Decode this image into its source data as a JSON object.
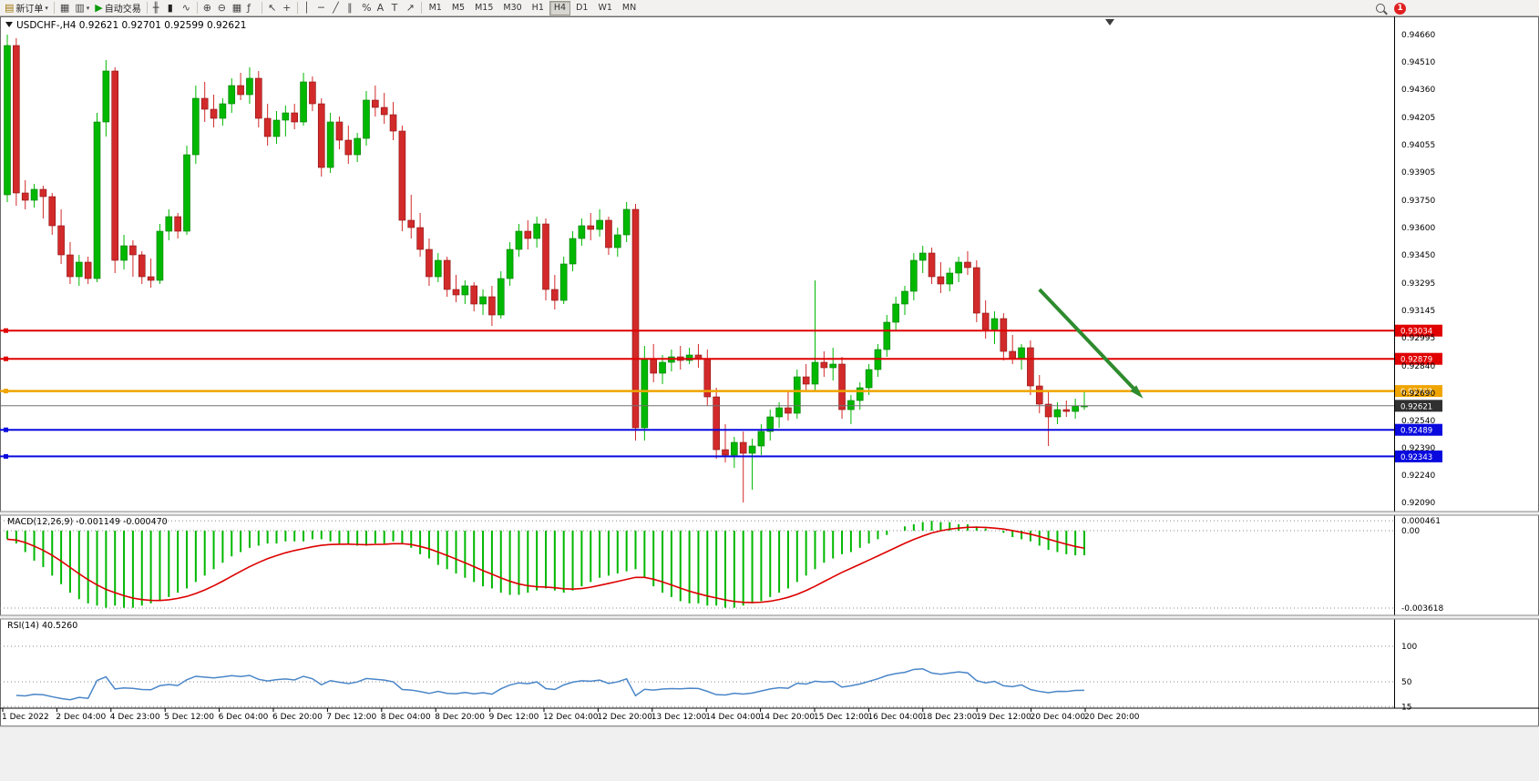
{
  "window": {
    "title": "USDCHF-,H4  0.92621 0.92701 0.92599 0.92621",
    "symbol": "USDCHF-",
    "timeframe": "H4",
    "quote": {
      "open": "0.92621",
      "high": "0.92701",
      "low": "0.92599",
      "close": "0.92621"
    }
  },
  "toolbar": {
    "buttons": [
      {
        "name": "new-order",
        "glyph": "▤",
        "label": "新订单",
        "caret": true
      },
      {
        "sep": true
      },
      {
        "name": "chart-window",
        "glyph": "▦"
      },
      {
        "name": "profiles",
        "glyph": "▥",
        "caret": true
      },
      {
        "name": "auto-trading",
        "glyph": "▶",
        "label": "自动交易"
      },
      {
        "sep": true
      },
      {
        "name": "bar-chart",
        "glyph": "╫"
      },
      {
        "name": "candlestick-chart",
        "glyph": "▮"
      },
      {
        "name": "line-chart",
        "glyph": "∿"
      },
      {
        "sep": true
      },
      {
        "name": "zoom-in",
        "glyph": "⊕"
      },
      {
        "name": "zoom-out",
        "glyph": "⊖"
      },
      {
        "name": "tile-windows",
        "glyph": "▦"
      },
      {
        "name": "indicators",
        "glyph": "ƒ"
      },
      {
        "sep": true
      },
      {
        "name": "cursor",
        "glyph": "↖"
      },
      {
        "name": "crosshair",
        "glyph": "+"
      },
      {
        "sep": true
      },
      {
        "name": "vertical-line",
        "glyph": "│"
      },
      {
        "name": "horizontal-line",
        "glyph": "─"
      },
      {
        "name": "trendline",
        "glyph": "╱"
      },
      {
        "name": "equidistant-channel",
        "glyph": "∥"
      },
      {
        "name": "fibonacci",
        "glyph": "%"
      },
      {
        "name": "text",
        "glyph": "A"
      },
      {
        "name": "text-label",
        "glyph": "T"
      },
      {
        "name": "arrows-tool",
        "glyph": "↗"
      },
      {
        "sep": true
      }
    ],
    "timeframes": [
      "M1",
      "M5",
      "M15",
      "M30",
      "H1",
      "H4",
      "D1",
      "W1",
      "MN"
    ],
    "active_timeframe": "H4",
    "badge": "1"
  },
  "chart_data": [
    {
      "type": "candlestick",
      "symbol": "USDCHF-",
      "timeframe": "H4",
      "ylim": [
        0.9209,
        0.9466
      ],
      "y_axis_labels": [
        "0.94660",
        "0.94510",
        "0.94360",
        "0.94205",
        "0.94055",
        "0.93905",
        "0.93750",
        "0.93600",
        "0.93450",
        "0.93295",
        "0.93145",
        "0.92995",
        "0.92840",
        "0.92690",
        "0.92540",
        "0.92390",
        "0.92240",
        "0.92090"
      ],
      "x_labels": [
        "1 Dec 2022",
        "2 Dec 04:00",
        "4 Dec 23:00",
        "5 Dec 12:00",
        "6 Dec 04:00",
        "6 Dec 20:00",
        "7 Dec 12:00",
        "8 Dec 04:00",
        "8 Dec 20:00",
        "9 Dec 12:00",
        "12 Dec 04:00",
        "12 Dec 20:00",
        "13 Dec 12:00",
        "14 Dec 04:00",
        "14 Dec 20:00",
        "15 Dec 12:00",
        "16 Dec 04:00",
        "18 Dec 23:00",
        "19 Dec 12:00",
        "20 Dec 04:00",
        "20 Dec 20:00"
      ],
      "levels": [
        {
          "price": 0.93034,
          "label": "0.93034",
          "color": "#e00000",
          "width": 2
        },
        {
          "price": 0.92879,
          "label": "0.92879",
          "color": "#e00000",
          "width": 2
        },
        {
          "price": 0.92702,
          "label": "0.92702",
          "color": "#efa400",
          "width": 2.5
        },
        {
          "price": 0.92621,
          "label": "0.92621",
          "color": "#707070",
          "width": 1,
          "tag": "#303030",
          "current": true
        },
        {
          "price": 0.92489,
          "label": "0.92489",
          "color": "#0a0adf",
          "width": 2
        },
        {
          "price": 0.92343,
          "label": "0.92343",
          "color": "#0a0adf",
          "width": 2
        }
      ],
      "arrow": {
        "from_bar": 115,
        "from_price": 0.9326,
        "to_bar": 126,
        "to_price": 0.9269,
        "color": "#2e8b2e"
      },
      "candles": [
        [
          0.9378,
          0.9466,
          0.9374,
          0.946
        ],
        [
          0.946,
          0.9464,
          0.9372,
          0.9379
        ],
        [
          0.9379,
          0.9386,
          0.937,
          0.9375
        ],
        [
          0.9375,
          0.9384,
          0.9371,
          0.9381
        ],
        [
          0.9381,
          0.9383,
          0.9365,
          0.9377
        ],
        [
          0.9377,
          0.9379,
          0.9356,
          0.9361
        ],
        [
          0.9361,
          0.937,
          0.934,
          0.9345
        ],
        [
          0.9345,
          0.9352,
          0.9329,
          0.9333
        ],
        [
          0.9333,
          0.9345,
          0.9328,
          0.9341
        ],
        [
          0.9341,
          0.9344,
          0.9329,
          0.9332
        ],
        [
          0.9332,
          0.9423,
          0.933,
          0.9418
        ],
        [
          0.9418,
          0.9452,
          0.941,
          0.9446
        ],
        [
          0.9446,
          0.9448,
          0.9335,
          0.9342
        ],
        [
          0.9342,
          0.9356,
          0.9337,
          0.935
        ],
        [
          0.935,
          0.9353,
          0.9333,
          0.9345
        ],
        [
          0.9345,
          0.9347,
          0.9329,
          0.9333
        ],
        [
          0.9333,
          0.9343,
          0.9327,
          0.9331
        ],
        [
          0.9331,
          0.9362,
          0.9329,
          0.9358
        ],
        [
          0.9358,
          0.937,
          0.9353,
          0.9366
        ],
        [
          0.9366,
          0.9368,
          0.9354,
          0.9358
        ],
        [
          0.9358,
          0.9405,
          0.9356,
          0.94
        ],
        [
          0.94,
          0.9438,
          0.9395,
          0.9431
        ],
        [
          0.9431,
          0.944,
          0.9418,
          0.9425
        ],
        [
          0.9425,
          0.9433,
          0.9415,
          0.942
        ],
        [
          0.942,
          0.9431,
          0.9416,
          0.9428
        ],
        [
          0.9428,
          0.9442,
          0.9423,
          0.9438
        ],
        [
          0.9438,
          0.9445,
          0.943,
          0.9433
        ],
        [
          0.9433,
          0.9448,
          0.9428,
          0.9442
        ],
        [
          0.9442,
          0.9446,
          0.9415,
          0.942
        ],
        [
          0.942,
          0.9428,
          0.9405,
          0.941
        ],
        [
          0.941,
          0.9424,
          0.9406,
          0.9419
        ],
        [
          0.9419,
          0.9427,
          0.941,
          0.9423
        ],
        [
          0.9423,
          0.9428,
          0.9414,
          0.9418
        ],
        [
          0.9418,
          0.9445,
          0.9416,
          0.944
        ],
        [
          0.944,
          0.9443,
          0.9424,
          0.9428
        ],
        [
          0.9428,
          0.9431,
          0.9388,
          0.9393
        ],
        [
          0.9393,
          0.9423,
          0.939,
          0.9418
        ],
        [
          0.9418,
          0.9421,
          0.9403,
          0.9408
        ],
        [
          0.9408,
          0.9416,
          0.9395,
          0.94
        ],
        [
          0.94,
          0.9412,
          0.9396,
          0.9409
        ],
        [
          0.9409,
          0.9435,
          0.9405,
          0.943
        ],
        [
          0.943,
          0.9438,
          0.9421,
          0.9426
        ],
        [
          0.9426,
          0.9434,
          0.9417,
          0.9422
        ],
        [
          0.9422,
          0.9429,
          0.9408,
          0.9413
        ],
        [
          0.9413,
          0.9416,
          0.9358,
          0.9364
        ],
        [
          0.9364,
          0.9378,
          0.9354,
          0.936
        ],
        [
          0.936,
          0.9368,
          0.9344,
          0.9348
        ],
        [
          0.9348,
          0.9354,
          0.9328,
          0.9333
        ],
        [
          0.9333,
          0.9346,
          0.933,
          0.9342
        ],
        [
          0.9342,
          0.9344,
          0.9322,
          0.9326
        ],
        [
          0.9326,
          0.9334,
          0.9319,
          0.9323
        ],
        [
          0.9323,
          0.9331,
          0.9318,
          0.9328
        ],
        [
          0.9328,
          0.933,
          0.9314,
          0.9318
        ],
        [
          0.9318,
          0.9326,
          0.9312,
          0.9322
        ],
        [
          0.9322,
          0.9328,
          0.9306,
          0.9312
        ],
        [
          0.9312,
          0.9336,
          0.931,
          0.9332
        ],
        [
          0.9332,
          0.9352,
          0.9328,
          0.9348
        ],
        [
          0.9348,
          0.9362,
          0.9344,
          0.9358
        ],
        [
          0.9358,
          0.9364,
          0.9348,
          0.9354
        ],
        [
          0.9354,
          0.9366,
          0.9349,
          0.9362
        ],
        [
          0.9362,
          0.9365,
          0.932,
          0.9326
        ],
        [
          0.9326,
          0.9334,
          0.9315,
          0.932
        ],
        [
          0.932,
          0.9344,
          0.9318,
          0.934
        ],
        [
          0.934,
          0.9358,
          0.9336,
          0.9354
        ],
        [
          0.9354,
          0.9365,
          0.935,
          0.9361
        ],
        [
          0.9361,
          0.9368,
          0.9353,
          0.9359
        ],
        [
          0.9359,
          0.937,
          0.9355,
          0.9364
        ],
        [
          0.9364,
          0.9366,
          0.9345,
          0.9349
        ],
        [
          0.9349,
          0.936,
          0.9344,
          0.9356
        ],
        [
          0.9356,
          0.9374,
          0.9352,
          0.937
        ],
        [
          0.937,
          0.9373,
          0.9243,
          0.925
        ],
        [
          0.925,
          0.9295,
          0.9243,
          0.9288
        ],
        [
          0.9288,
          0.9296,
          0.9275,
          0.928
        ],
        [
          0.928,
          0.929,
          0.9274,
          0.9286
        ],
        [
          0.9286,
          0.9293,
          0.9281,
          0.9289
        ],
        [
          0.9289,
          0.9295,
          0.9282,
          0.9287
        ],
        [
          0.9287,
          0.9294,
          0.9285,
          0.929
        ],
        [
          0.929,
          0.9296,
          0.9283,
          0.9288
        ],
        [
          0.9288,
          0.9293,
          0.9262,
          0.9267
        ],
        [
          0.9267,
          0.9272,
          0.9233,
          0.9238
        ],
        [
          0.9238,
          0.9252,
          0.9231,
          0.9235
        ],
        [
          0.9235,
          0.9245,
          0.9228,
          0.9242
        ],
        [
          0.9242,
          0.9248,
          0.9209,
          0.9236
        ],
        [
          0.9236,
          0.9244,
          0.9216,
          0.924
        ],
        [
          0.924,
          0.9252,
          0.9235,
          0.9248
        ],
        [
          0.9248,
          0.926,
          0.9243,
          0.9256
        ],
        [
          0.9256,
          0.9264,
          0.925,
          0.9261
        ],
        [
          0.9261,
          0.927,
          0.9254,
          0.9258
        ],
        [
          0.9258,
          0.9282,
          0.9255,
          0.9278
        ],
        [
          0.9278,
          0.9285,
          0.927,
          0.9274
        ],
        [
          0.9274,
          0.9331,
          0.927,
          0.9286
        ],
        [
          0.9286,
          0.9292,
          0.9278,
          0.9283
        ],
        [
          0.9283,
          0.9294,
          0.9276,
          0.9285
        ],
        [
          0.9285,
          0.9289,
          0.9255,
          0.926
        ],
        [
          0.926,
          0.9268,
          0.9252,
          0.9265
        ],
        [
          0.9265,
          0.9275,
          0.926,
          0.9272
        ],
        [
          0.9272,
          0.9285,
          0.9268,
          0.9282
        ],
        [
          0.9282,
          0.9296,
          0.9278,
          0.9293
        ],
        [
          0.9293,
          0.9312,
          0.9289,
          0.9308
        ],
        [
          0.9308,
          0.9322,
          0.9303,
          0.9318
        ],
        [
          0.9318,
          0.9328,
          0.9312,
          0.9325
        ],
        [
          0.9325,
          0.9346,
          0.932,
          0.9342
        ],
        [
          0.9342,
          0.935,
          0.9335,
          0.9346
        ],
        [
          0.9346,
          0.9349,
          0.9329,
          0.9333
        ],
        [
          0.9333,
          0.9341,
          0.9324,
          0.9329
        ],
        [
          0.9329,
          0.9338,
          0.9325,
          0.9335
        ],
        [
          0.9335,
          0.9344,
          0.933,
          0.9341
        ],
        [
          0.9341,
          0.9347,
          0.9334,
          0.9338
        ],
        [
          0.9338,
          0.9342,
          0.9308,
          0.9313
        ],
        [
          0.9313,
          0.932,
          0.9299,
          0.9304
        ],
        [
          0.9304,
          0.9314,
          0.9296,
          0.931
        ],
        [
          0.931,
          0.9313,
          0.9287,
          0.9292
        ],
        [
          0.9292,
          0.9301,
          0.9285,
          0.9288
        ],
        [
          0.9288,
          0.9296,
          0.9282,
          0.9294
        ],
        [
          0.9294,
          0.9298,
          0.9268,
          0.9273
        ],
        [
          0.9273,
          0.9279,
          0.9258,
          0.9263
        ],
        [
          0.9263,
          0.927,
          0.924,
          0.9256
        ],
        [
          0.9256,
          0.9264,
          0.9252,
          0.926
        ],
        [
          0.926,
          0.9265,
          0.9256,
          0.9259
        ],
        [
          0.9259,
          0.9266,
          0.9255,
          0.9262
        ],
        [
          0.9262,
          0.92701,
          0.92599,
          0.92621
        ]
      ],
      "colors": {
        "bull": "#00b800",
        "bear": "#d22a2a"
      }
    },
    {
      "type": "macd",
      "label": "MACD(12,26,9)",
      "display": "MACD(12,26,9) -0.001149 -0.000470",
      "values_display": [
        "-0.001149",
        "-0.000470"
      ],
      "y_axis_labels": [
        "0.000461",
        "0.00",
        "-0.003618"
      ],
      "ylim": [
        -0.003618,
        0.000461
      ],
      "signal_period": 9,
      "colors": {
        "histogram": "#00b800",
        "signal": "#dd0000"
      },
      "histogram": [
        -0.0004,
        -0.0006,
        -0.001,
        -0.0014,
        -0.0017,
        -0.0021,
        -0.0025,
        -0.0029,
        -0.0032,
        -0.0034,
        -0.0035,
        -0.0036,
        -0.0035,
        -0.0036,
        -0.0036,
        -0.0035,
        -0.0034,
        -0.0033,
        -0.0031,
        -0.0029,
        -0.0027,
        -0.0024,
        -0.0021,
        -0.0018,
        -0.0015,
        -0.0012,
        -0.001,
        -0.0008,
        -0.0007,
        -0.0006,
        -0.0006,
        -0.0005,
        -0.0005,
        -0.0005,
        -0.0004,
        -0.0004,
        -0.0005,
        -0.0006,
        -0.0006,
        -0.0007,
        -0.0007,
        -0.0006,
        -0.0006,
        -0.0005,
        -0.0006,
        -0.0008,
        -0.0011,
        -0.0013,
        -0.0016,
        -0.0018,
        -0.002,
        -0.0022,
        -0.0024,
        -0.0026,
        -0.0027,
        -0.0029,
        -0.003,
        -0.003,
        -0.0029,
        -0.0028,
        -0.0027,
        -0.0028,
        -0.0029,
        -0.0028,
        -0.0026,
        -0.0024,
        -0.0022,
        -0.0021,
        -0.002,
        -0.0019,
        -0.0018,
        -0.0022,
        -0.0026,
        -0.0029,
        -0.0031,
        -0.0033,
        -0.0034,
        -0.0034,
        -0.0035,
        -0.0035,
        -0.0036,
        -0.0036,
        -0.0035,
        -0.0034,
        -0.0033,
        -0.0031,
        -0.0029,
        -0.0027,
        -0.0024,
        -0.0021,
        -0.0018,
        -0.0015,
        -0.0013,
        -0.0011,
        -0.001,
        -0.0008,
        -0.0006,
        -0.0004,
        -0.0002,
        0.0,
        0.0002,
        0.0003,
        0.0004,
        0.00046,
        0.0004,
        0.0004,
        0.0003,
        0.0003,
        0.0002,
        0.0001,
        0.0,
        -0.0001,
        -0.0003,
        -0.0004,
        -0.0005,
        -0.0007,
        -0.0009,
        -0.001,
        -0.0011,
        -0.00115,
        -0.001149
      ]
    },
    {
      "type": "rsi",
      "label": "RSI(14)",
      "display": "RSI(14) 40.5260",
      "value_display": "40.5260",
      "period": 14,
      "y_axis_labels": [
        "100",
        "50",
        "15"
      ],
      "levels": [
        100,
        50,
        15
      ],
      "color": "#4a86c8"
    }
  ]
}
